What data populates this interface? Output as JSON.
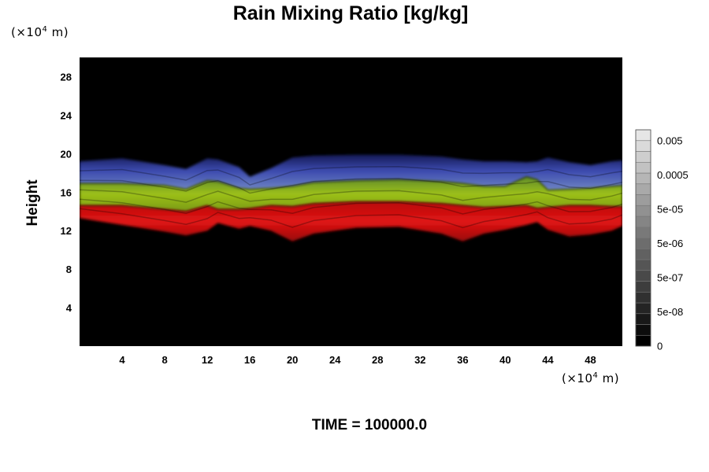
{
  "chart_data": {
    "type": "heatmap",
    "title": "Rain Mixing Ratio [kg/kg]",
    "ylabel": "Height",
    "y_unit": "(×10⁴ m)",
    "x_unit": "(×10⁴ m)",
    "x_ticks": [
      4,
      8,
      12,
      16,
      20,
      24,
      28,
      32,
      36,
      40,
      44,
      48
    ],
    "y_ticks": [
      4,
      8,
      12,
      16,
      20,
      24,
      28
    ],
    "xlim": [
      0,
      51
    ],
    "ylim": [
      0,
      30
    ],
    "colorbar_labels": [
      "0.005",
      "0.0005",
      "5e-05",
      "5e-06",
      "5e-07",
      "5e-08",
      "0"
    ],
    "footer": "TIME = 100000.0",
    "colors": {
      "background": "#000000",
      "upper_band": "#4a5ab8",
      "middle_band": "#8cb21a",
      "lower_band": "#dd1111"
    },
    "band_profile": {
      "x": [
        0,
        4,
        8,
        10,
        12,
        13,
        15,
        16,
        18,
        20,
        22,
        26,
        30,
        34,
        36,
        38,
        40,
        42,
        43,
        44,
        46,
        48,
        50,
        51
      ],
      "blue_top": [
        19.2,
        19.5,
        18.8,
        18.4,
        19.5,
        19.4,
        18.6,
        17.6,
        18.5,
        19.6,
        19.8,
        19.9,
        19.9,
        19.7,
        19.4,
        19.2,
        19.2,
        19.1,
        19.2,
        19.6,
        19.1,
        18.8,
        19.2,
        19.3
      ],
      "green_top": [
        16.9,
        16.9,
        16.7,
        16.3,
        17.2,
        17.1,
        16.4,
        16.3,
        16.4,
        16.6,
        17.0,
        17.2,
        17.3,
        17.1,
        16.9,
        16.6,
        16.6,
        17.6,
        17.3,
        16.2,
        16.3,
        16.4,
        16.6,
        16.7
      ],
      "red_top": [
        14.6,
        14.6,
        14.2,
        14.0,
        14.6,
        14.2,
        14.2,
        14.3,
        14.6,
        14.5,
        14.8,
        15.0,
        15.0,
        14.8,
        14.6,
        14.4,
        14.5,
        14.6,
        14.3,
        14.4,
        14.6,
        14.6,
        14.5,
        14.5
      ],
      "red_bottom": [
        13.3,
        12.6,
        11.9,
        11.5,
        12.0,
        12.8,
        12.2,
        12.5,
        12.0,
        10.9,
        11.7,
        12.3,
        12.4,
        11.7,
        10.9,
        11.7,
        12.1,
        12.6,
        12.9,
        12.1,
        11.4,
        11.6,
        12.0,
        12.5
      ]
    }
  }
}
